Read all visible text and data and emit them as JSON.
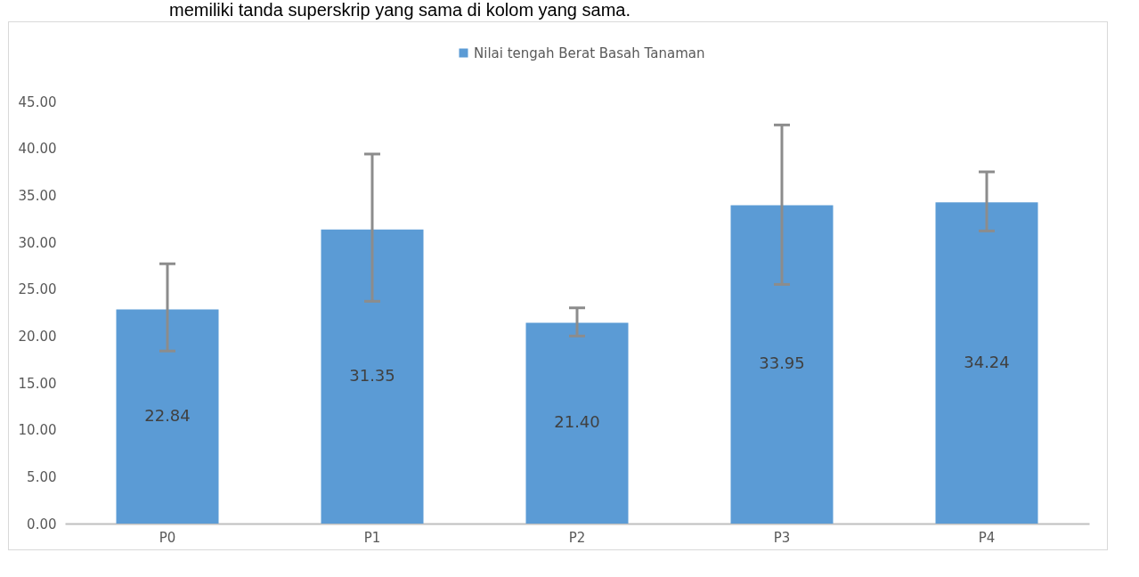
{
  "chart_data": {
    "type": "bar",
    "categories": [
      "P0",
      "P1",
      "P2",
      "P3",
      "P4"
    ],
    "series": [
      {
        "name": "Nilai tengah Berat Basah Tanaman",
        "color": "#5b9bd5",
        "values": [
          22.84,
          31.35,
          21.4,
          33.95,
          34.24
        ],
        "errors": [
          [
            18.4,
            27.7
          ],
          [
            23.7,
            39.4
          ],
          [
            20.0,
            23.0
          ],
          [
            25.5,
            42.5
          ],
          [
            31.2,
            37.5
          ]
        ]
      }
    ],
    "ylim": [
      0,
      45
    ],
    "yticks": [
      {
        "value": 0,
        "label": "0.00"
      },
      {
        "value": 5,
        "label": "5.00"
      },
      {
        "value": 10,
        "label": "10.00"
      },
      {
        "value": 15,
        "label": "15.00"
      },
      {
        "value": 20,
        "label": "20.00"
      },
      {
        "value": 25,
        "label": "25.00"
      },
      {
        "value": 30,
        "label": "30.00"
      },
      {
        "value": 35,
        "label": "35.00"
      },
      {
        "value": 40,
        "label": "40.00"
      },
      {
        "value": 45,
        "label": "45.00"
      }
    ],
    "value_labels": [
      "22.84",
      "31.35",
      "21.40",
      "33.95",
      "34.24"
    ],
    "grid": false,
    "legend": "top",
    "annotations": [
      "memiliki tanda superskrip yang sama di kolom yang sama."
    ]
  }
}
